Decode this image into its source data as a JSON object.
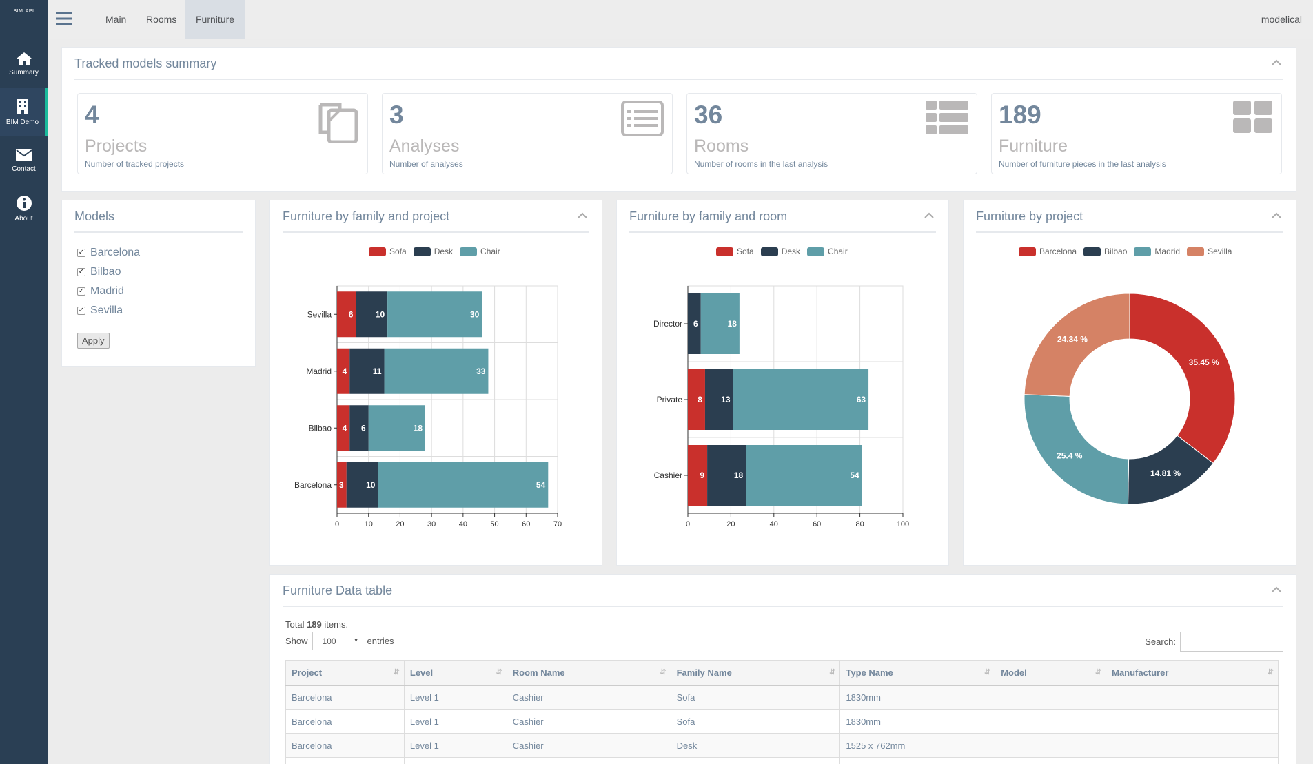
{
  "sidebar": {
    "brand": "BIM",
    "brand_sup": "API",
    "items": [
      {
        "label": "Summary",
        "icon": "home-icon"
      },
      {
        "label": "BIM Demo",
        "icon": "building-icon"
      },
      {
        "label": "Contact",
        "icon": "envelope-icon"
      },
      {
        "label": "About",
        "icon": "info-icon"
      }
    ]
  },
  "topbar": {
    "tabs": [
      "Main",
      "Rooms",
      "Furniture"
    ],
    "active_tab": "Furniture",
    "user": "modelical"
  },
  "summary": {
    "title": "Tracked models summary",
    "tiles": [
      {
        "value": "4",
        "label": "Projects",
        "desc": "Number of tracked projects",
        "icon": "copy-icon"
      },
      {
        "value": "3",
        "label": "Analyses",
        "desc": "Number of analyses",
        "icon": "list-alt-icon"
      },
      {
        "value": "36",
        "label": "Rooms",
        "desc": "Number of rooms in the last analysis",
        "icon": "th-list-icon"
      },
      {
        "value": "189",
        "label": "Furniture",
        "desc": "Number of furniture pieces in the last analysis",
        "icon": "th-large-icon"
      }
    ]
  },
  "models": {
    "title": "Models",
    "items": [
      "Barcelona",
      "Bilbao",
      "Madrid",
      "Sevilla"
    ],
    "apply": "Apply"
  },
  "colors": {
    "red": "#c9302c",
    "navy": "#2b3e50",
    "teal": "#5f9ea8",
    "salmon": "#d58265"
  },
  "chart1_title": "Furniture by family and project",
  "chart2_title": "Furniture by family and room",
  "chart3_title": "Furniture by project",
  "chart_data": [
    {
      "type": "bar",
      "orientation": "horizontal",
      "stacked": true,
      "categories": [
        "Sevilla",
        "Madrid",
        "Bilbao",
        "Barcelona"
      ],
      "series": [
        {
          "name": "Sofa",
          "values": [
            6,
            4,
            4,
            3
          ],
          "color": "#c9302c"
        },
        {
          "name": "Desk",
          "values": [
            10,
            11,
            6,
            10
          ],
          "color": "#2b3e50"
        },
        {
          "name": "Chair",
          "values": [
            30,
            33,
            18,
            54
          ],
          "color": "#5f9ea8"
        }
      ],
      "xlim": [
        0,
        70
      ],
      "xticks": [
        0,
        10,
        20,
        30,
        40,
        50,
        60,
        70
      ],
      "legend": "top"
    },
    {
      "type": "bar",
      "orientation": "horizontal",
      "stacked": true,
      "categories": [
        "Director",
        "Private",
        "Cashier"
      ],
      "series": [
        {
          "name": "Sofa",
          "values": [
            0,
            8,
            9
          ],
          "color": "#c9302c"
        },
        {
          "name": "Desk",
          "values": [
            6,
            13,
            18
          ],
          "color": "#2b3e50"
        },
        {
          "name": "Chair",
          "values": [
            18,
            63,
            54
          ],
          "color": "#5f9ea8"
        }
      ],
      "xlim": [
        0,
        100
      ],
      "xticks": [
        0,
        20,
        40,
        60,
        80,
        100
      ],
      "legend": "top"
    },
    {
      "type": "pie",
      "donut": true,
      "labels": [
        "Barcelona",
        "Bilbao",
        "Madrid",
        "Sevilla"
      ],
      "values": [
        35.45,
        14.81,
        25.4,
        24.34
      ],
      "display": [
        "35.45 %",
        "14.81 %",
        "25.4 %",
        "24.34 %"
      ],
      "colors": [
        "#c9302c",
        "#2b3e50",
        "#5f9ea8",
        "#d58265"
      ],
      "legend": "top"
    }
  ],
  "table": {
    "title": "Furniture Data table",
    "total_prefix": "Total ",
    "total": "189",
    "total_suffix": " items.",
    "show_label": "Show",
    "show_value": "100",
    "entries_label": "entries",
    "search_label": "Search:",
    "columns": [
      "Project",
      "Level",
      "Room Name",
      "Family Name",
      "Type Name",
      "Model",
      "Manufacturer"
    ],
    "rows": [
      [
        "Barcelona",
        "Level 1",
        "Cashier",
        "Sofa",
        "1830mm",
        "",
        ""
      ],
      [
        "Barcelona",
        "Level 1",
        "Cashier",
        "Sofa",
        "1830mm",
        "",
        ""
      ],
      [
        "Barcelona",
        "Level 1",
        "Cashier",
        "Desk",
        "1525 x 762mm",
        "",
        ""
      ],
      [
        "",
        "",
        "",
        "",
        "",
        "",
        ""
      ]
    ]
  }
}
